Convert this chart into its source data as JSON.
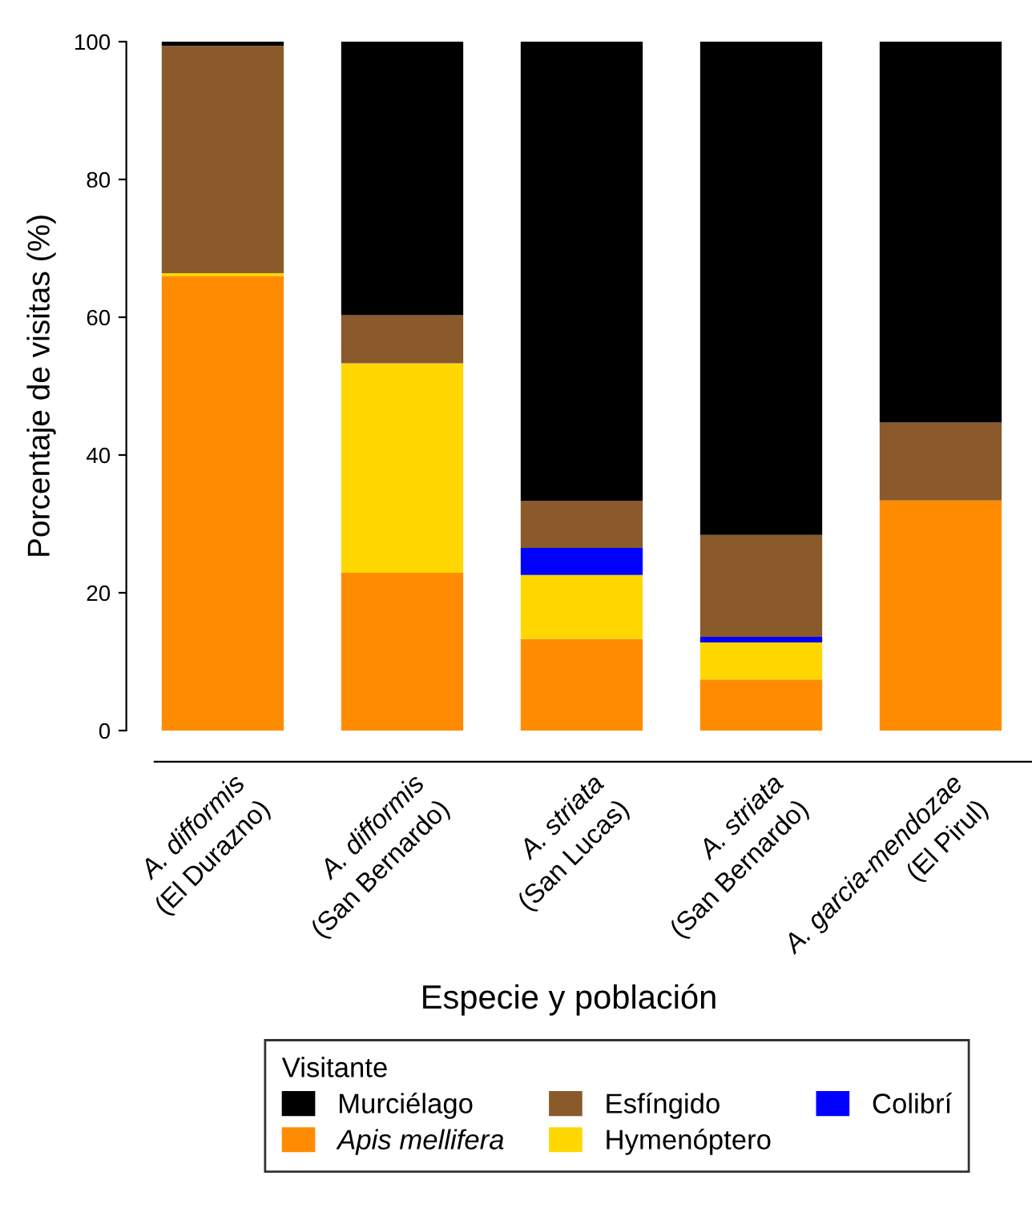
{
  "chart_data": {
    "type": "bar",
    "stacked": true,
    "categories": [
      "A. difformis\n(El Durazno)",
      "A. difformis\n(San Bernardo)",
      "A. striata\n(San Lucas)",
      "A. striata\n(San Bernardo)",
      "A. garcia-mendozae\n(El Pirul)"
    ],
    "series": [
      {
        "name": "Apis mellifera",
        "color": "#ff8c00",
        "values": [
          66.0,
          22.9,
          13.3,
          7.4,
          33.4
        ]
      },
      {
        "name": "Hymenóptero",
        "color": "#ffd700",
        "values": [
          0.4,
          30.4,
          9.3,
          5.4,
          0
        ]
      },
      {
        "name": "Colibrí",
        "color": "#0000ff",
        "values": [
          0,
          0,
          3.9,
          0.8,
          0
        ]
      },
      {
        "name": "Esfíngido",
        "color": "#8b5a2b",
        "values": [
          33.0,
          7.0,
          6.8,
          14.8,
          11.3
        ]
      },
      {
        "name": "Murciélago",
        "color": "#000000",
        "values": [
          0.6,
          39.7,
          66.7,
          71.6,
          55.3
        ]
      }
    ],
    "xlabel": "Especie y población",
    "ylabel": "Porcentaje de visitas (%)",
    "ylim": [
      0,
      100
    ],
    "yticks": [
      0,
      20,
      40,
      60,
      80,
      100
    ],
    "legend": "bottom",
    "legend_title": "Visitante",
    "grid": false
  }
}
